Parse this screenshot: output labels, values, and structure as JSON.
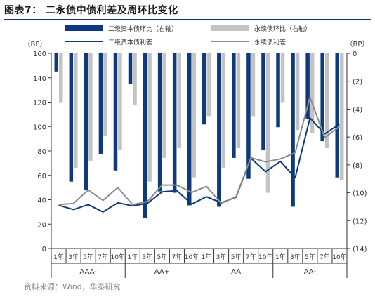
{
  "figure_title": "图表7：  二永债中债利差及周环比变化",
  "source": "资料来源：Wind，华泰研究",
  "chart_data": {
    "type": "bar+line",
    "left_axis": {
      "label": "（BP）",
      "min": 0,
      "max": 160,
      "ticks": [
        0,
        20,
        40,
        60,
        80,
        100,
        120,
        140,
        160
      ]
    },
    "right_axis": {
      "label": "（BP）",
      "min": -14,
      "max": 0,
      "tick_values": [
        0,
        -2,
        -4,
        -6,
        -8,
        -10,
        -12,
        -14
      ],
      "tick_labels": [
        "0",
        "(2)",
        "(4)",
        "(6)",
        "(8)",
        "(10)",
        "(12)",
        "(14)"
      ]
    },
    "tenor_labels": [
      "1年",
      "3年",
      "5年",
      "7年",
      "10年",
      "1年",
      "3年",
      "5年",
      "7年",
      "10年",
      "1年",
      "3年",
      "5年",
      "7年",
      "10年",
      "1年",
      "3年",
      "5年",
      "7年",
      "10年"
    ],
    "rating_labels": [
      "AAA-",
      "AA+",
      "AA",
      "AA-"
    ],
    "legend": [
      {
        "name": "二级资本债环比（右轴）",
        "kind": "bar",
        "color": "#0d3a7c"
      },
      {
        "name": "永续债环比（右轴）",
        "kind": "bar",
        "color": "#c3c3c3"
      },
      {
        "name": "二级资本债利差",
        "kind": "line",
        "color": "#0d3a7c"
      },
      {
        "name": "永续债利差",
        "kind": "line",
        "color": "#8c8c8c"
      }
    ],
    "series": [
      {
        "name": "二级资本债环比（右轴）",
        "axis": "right",
        "type": "bar",
        "color": "#0d3a7c",
        "values": [
          -1.3,
          -9.2,
          -9.8,
          -7.2,
          -8.4,
          -2.2,
          -11.8,
          -9.9,
          -10.0,
          -10.9,
          -5.1,
          -11.0,
          -7.5,
          -9.0,
          -6.9,
          -5.3,
          -11.0,
          -4.7,
          -6.3,
          -8.9
        ]
      },
      {
        "name": "永续债环比（右轴）",
        "axis": "right",
        "type": "bar",
        "color": "#c3c3c3",
        "values": [
          -3.5,
          -8.2,
          -7.7,
          -5.9,
          -6.9,
          -3.7,
          -9.2,
          -7.5,
          -6.8,
          -8.9,
          -4.5,
          -8.2,
          -6.8,
          -4.5,
          -10.0,
          -3.5,
          -5.5,
          -5.7,
          -6.8,
          -9.1
        ]
      },
      {
        "name": "二级资本债利差",
        "axis": "left",
        "type": "line",
        "color": "#0d3a7c",
        "values": [
          35.5,
          32.0,
          36.0,
          30.0,
          37.5,
          35.0,
          37.0,
          46.5,
          47.5,
          36.5,
          42.5,
          37.5,
          42.0,
          74.0,
          63.0,
          71.5,
          58.0,
          107.0,
          94.0,
          102.0
        ]
      },
      {
        "name": "永续债利差",
        "axis": "left",
        "type": "line",
        "color": "#8c8c8c",
        "values": [
          36.0,
          37.0,
          48.0,
          39.5,
          50.0,
          36.0,
          38.5,
          52.0,
          52.0,
          46.0,
          51.0,
          37.0,
          42.5,
          74.5,
          71.0,
          73.5,
          78.5,
          124.0,
          91.0,
          100.0
        ]
      }
    ]
  }
}
